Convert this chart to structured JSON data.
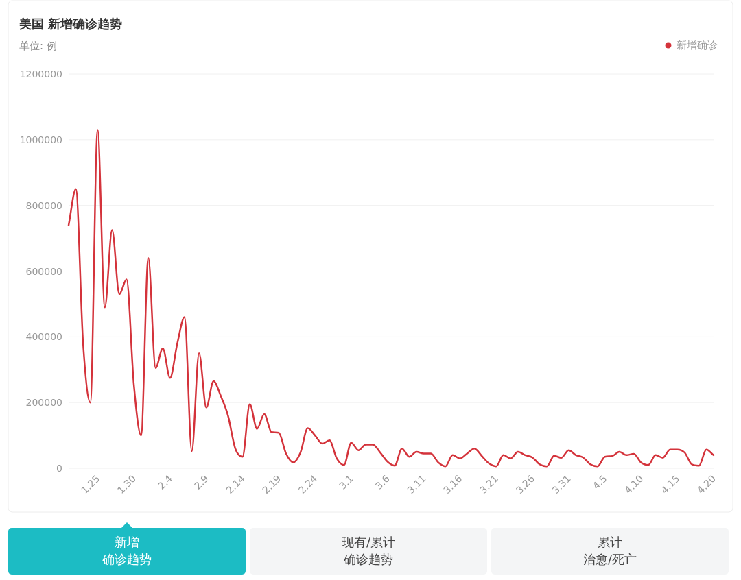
{
  "chart_data": {
    "type": "line",
    "title": "美国 新增确诊趋势",
    "subtitle": "单位: 例",
    "x": [
      "--01-21",
      "--01-22",
      "--01-23",
      "--01-24",
      "--01-25",
      "--01-26",
      "--01-27",
      "--01-28",
      "--01-29",
      "--01-30",
      "--01-31",
      "--02-01",
      "--02-02",
      "--02-03",
      "--02-04",
      "--02-05",
      "--02-06",
      "--02-07",
      "--02-08",
      "--02-09",
      "--02-10",
      "--02-11",
      "--02-12",
      "--02-13",
      "--02-14",
      "--02-15",
      "--02-16",
      "--02-17",
      "--02-18",
      "--02-19",
      "--02-20",
      "--02-21",
      "--02-22",
      "--02-23",
      "--02-24",
      "--02-25",
      "--02-26",
      "--02-27",
      "--02-28",
      "--03-01",
      "--03-02",
      "--03-03",
      "--03-04",
      "--03-05",
      "--03-06",
      "--03-07",
      "--03-08",
      "--03-09",
      "--03-10",
      "--03-11",
      "--03-12",
      "--03-13",
      "--03-14",
      "--03-15",
      "--03-16",
      "--03-17",
      "--03-18",
      "--03-19",
      "--03-20",
      "--03-21",
      "--03-22",
      "--03-23",
      "--03-24",
      "--03-25",
      "--03-26",
      "--03-27",
      "--03-28",
      "--03-29",
      "--03-30",
      "--03-31",
      "--04-01",
      "--04-02",
      "--04-03",
      "--04-04",
      "--04-05",
      "--04-06",
      "--04-07",
      "--04-08",
      "--04-09",
      "--04-10",
      "--04-11",
      "--04-12",
      "--04-13",
      "--04-14",
      "--04-15",
      "--04-16",
      "--04-17",
      "--04-18",
      "--04-19",
      "--04-20"
    ],
    "series": [
      {
        "name": "新增确诊",
        "color": "#d4333b",
        "values": [
          740000,
          850000,
          380000,
          200000,
          1030000,
          490000,
          725000,
          530000,
          575000,
          255000,
          100000,
          640000,
          305000,
          365000,
          275000,
          380000,
          460000,
          52000,
          350000,
          185000,
          265000,
          220000,
          160000,
          60000,
          35000,
          195000,
          120000,
          165000,
          110000,
          108000,
          45000,
          18000,
          48000,
          122000,
          100000,
          75000,
          85000,
          30000,
          10000,
          78000,
          55000,
          72000,
          72000,
          48000,
          20000,
          8000,
          60000,
          35000,
          50000,
          45000,
          45000,
          18000,
          6000,
          40000,
          30000,
          45000,
          60000,
          38000,
          15000,
          6000,
          40000,
          30000,
          50000,
          40000,
          33000,
          12000,
          6000,
          38000,
          32000,
          55000,
          40000,
          33000,
          12000,
          6000,
          35000,
          37000,
          50000,
          40000,
          44000,
          17000,
          10000,
          40000,
          32000,
          57000,
          57000,
          48000,
          12000,
          8000,
          57000,
          40000
        ]
      }
    ],
    "xlim": [
      "--01-21",
      "--04-20"
    ],
    "xticks": [
      {
        "value": "--01-25",
        "label": "1.25"
      },
      {
        "value": "--01-30",
        "label": "1.30"
      },
      {
        "value": "--02-04",
        "label": "2.4"
      },
      {
        "value": "--02-09",
        "label": "2.9"
      },
      {
        "value": "--02-14",
        "label": "2.14"
      },
      {
        "value": "--02-19",
        "label": "2.19"
      },
      {
        "value": "--02-24",
        "label": "2.24"
      },
      {
        "value": "--03-01",
        "label": "3.1"
      },
      {
        "value": "--03-06",
        "label": "3.6"
      },
      {
        "value": "--03-11",
        "label": "3.11"
      },
      {
        "value": "--03-16",
        "label": "3.16"
      },
      {
        "value": "--03-21",
        "label": "3.21"
      },
      {
        "value": "--03-26",
        "label": "3.26"
      },
      {
        "value": "--03-31",
        "label": "3.31"
      },
      {
        "value": "--04-05",
        "label": "4.5"
      },
      {
        "value": "--04-10",
        "label": "4.10"
      },
      {
        "value": "--04-15",
        "label": "4.15"
      },
      {
        "value": "--04-20",
        "label": "4.20"
      }
    ],
    "ylim": [
      0,
      1200000
    ],
    "yticks": [
      0,
      200000,
      400000,
      600000,
      800000,
      1000000,
      1200000
    ],
    "grid": "y",
    "legend": "top right",
    "annotations": [
      "新增",
      "确诊趋势",
      "现有/累计",
      "确诊趋势",
      "累计",
      "治愈/死亡"
    ]
  }
}
